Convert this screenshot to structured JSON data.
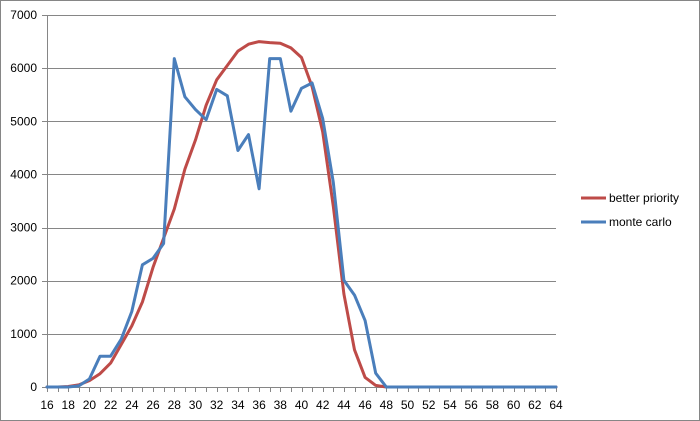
{
  "chart_data": {
    "type": "line",
    "title": "",
    "xlabel": "",
    "ylabel": "",
    "x": [
      16,
      17,
      18,
      19,
      20,
      21,
      22,
      23,
      24,
      25,
      26,
      27,
      28,
      29,
      30,
      31,
      32,
      33,
      34,
      35,
      36,
      37,
      38,
      39,
      40,
      41,
      42,
      43,
      44,
      45,
      46,
      47,
      48,
      49,
      50,
      51,
      52,
      53,
      54,
      55,
      56,
      57,
      58,
      59,
      60,
      61,
      62,
      63,
      64
    ],
    "xticks": [
      16,
      18,
      20,
      22,
      24,
      26,
      28,
      30,
      32,
      34,
      36,
      38,
      40,
      42,
      44,
      46,
      48,
      50,
      52,
      54,
      56,
      58,
      60,
      62,
      64
    ],
    "xlim": [
      16,
      64
    ],
    "ylim": [
      0,
      7000
    ],
    "yticks": [
      0,
      1000,
      2000,
      3000,
      4000,
      5000,
      6000,
      7000
    ],
    "grid": true,
    "legend_position": "right",
    "series": [
      {
        "name": "better priority",
        "color": "#be4b48",
        "values": [
          0,
          0,
          10,
          40,
          120,
          250,
          450,
          800,
          1150,
          1600,
          2250,
          2800,
          3350,
          4100,
          4650,
          5300,
          5780,
          6050,
          6320,
          6450,
          6500,
          6480,
          6470,
          6380,
          6200,
          5650,
          4800,
          3400,
          1750,
          700,
          180,
          30,
          0,
          0,
          0,
          0,
          0,
          0,
          0,
          0,
          0,
          0,
          0,
          0,
          0,
          0,
          0,
          0,
          0
        ]
      },
      {
        "name": "monte carlo",
        "color": "#4a7ebb",
        "values": [
          0,
          0,
          0,
          20,
          150,
          580,
          580,
          900,
          1420,
          2300,
          2420,
          2700,
          6180,
          5460,
          5220,
          5030,
          5600,
          5480,
          4450,
          4750,
          3730,
          6180,
          6180,
          5190,
          5620,
          5720,
          5050,
          3850,
          2010,
          1730,
          1250,
          260,
          0,
          0,
          0,
          0,
          0,
          0,
          0,
          0,
          0,
          0,
          0,
          0,
          0,
          0,
          0,
          0,
          0
        ]
      }
    ]
  }
}
